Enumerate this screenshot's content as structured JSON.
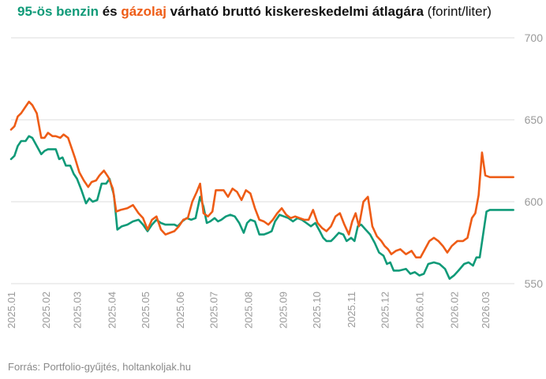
{
  "colors": {
    "benzin": "#0f9a78",
    "gazolaj": "#ee5c16",
    "grid": "#dcdcdc",
    "axis_text": "#9a9a9a"
  },
  "chart_data": {
    "type": "line",
    "title": {
      "part_benzin": "95-ös benzin",
      "part_es": " és ",
      "part_gazolaj": "gázolaj",
      "part_rest": " várható bruttó kiskereskedelmi átlagára",
      "unit": " (forint/liter)"
    },
    "xlabel": "",
    "ylabel": "",
    "ylim": [
      550,
      700
    ],
    "yticks": [
      550,
      600,
      650,
      700
    ],
    "y_axis_position": "right",
    "grid": true,
    "legend": "none",
    "x_range": [
      "2025-01-01",
      "2026-03-27"
    ],
    "x_ticks": [
      {
        "label": "2025.01",
        "date": "2025-01-01"
      },
      {
        "label": "2025.02",
        "date": "2025-02-01"
      },
      {
        "label": "2025.03",
        "date": "2025-03-01"
      },
      {
        "label": "2025.04",
        "date": "2025-04-01"
      },
      {
        "label": "2025.05",
        "date": "2025-05-01"
      },
      {
        "label": "2025.06",
        "date": "2025-06-01"
      },
      {
        "label": "2025.07",
        "date": "2025-07-01"
      },
      {
        "label": "2025.08",
        "date": "2025-08-01"
      },
      {
        "label": "2025.09",
        "date": "2025-09-01"
      },
      {
        "label": "2025.10",
        "date": "2025-10-01"
      },
      {
        "label": "2025.11",
        "date": "2025-11-01"
      },
      {
        "label": "2025.12",
        "date": "2025-12-01"
      },
      {
        "label": "2026.01",
        "date": "2026-01-01"
      },
      {
        "label": "2026.02",
        "date": "2026-02-01"
      },
      {
        "label": "2026.03",
        "date": "2026-03-01"
      }
    ],
    "series": [
      {
        "key": "benzin",
        "color": "#0f9a78",
        "points": [
          [
            "2025-01-01",
            626
          ],
          [
            "2025-01-04",
            628
          ],
          [
            "2025-01-07",
            634
          ],
          [
            "2025-01-10",
            637
          ],
          [
            "2025-01-14",
            637
          ],
          [
            "2025-01-17",
            640
          ],
          [
            "2025-01-20",
            639
          ],
          [
            "2025-01-24",
            634
          ],
          [
            "2025-01-28",
            629
          ],
          [
            "2025-01-31",
            631
          ],
          [
            "2025-02-03",
            632
          ],
          [
            "2025-02-07",
            632
          ],
          [
            "2025-02-10",
            632
          ],
          [
            "2025-02-13",
            626
          ],
          [
            "2025-02-16",
            627
          ],
          [
            "2025-02-19",
            622
          ],
          [
            "2025-02-23",
            622
          ],
          [
            "2025-02-26",
            617
          ],
          [
            "2025-03-01",
            614
          ],
          [
            "2025-03-05",
            607
          ],
          [
            "2025-03-09",
            599
          ],
          [
            "2025-03-12",
            602
          ],
          [
            "2025-03-15",
            600
          ],
          [
            "2025-03-19",
            601
          ],
          [
            "2025-03-23",
            611
          ],
          [
            "2025-03-27",
            611
          ],
          [
            "2025-03-30",
            614
          ],
          [
            "2025-04-03",
            604
          ],
          [
            "2025-04-06",
            583
          ],
          [
            "2025-04-10",
            585
          ],
          [
            "2025-04-15",
            586
          ],
          [
            "2025-04-20",
            588
          ],
          [
            "2025-04-25",
            589
          ],
          [
            "2025-04-29",
            586
          ],
          [
            "2025-05-03",
            582
          ],
          [
            "2025-05-07",
            586
          ],
          [
            "2025-05-11",
            589
          ],
          [
            "2025-05-15",
            587
          ],
          [
            "2025-05-19",
            586
          ],
          [
            "2025-05-23",
            586
          ],
          [
            "2025-05-27",
            586
          ],
          [
            "2025-05-30",
            585
          ],
          [
            "2025-06-03",
            588
          ],
          [
            "2025-06-07",
            590
          ],
          [
            "2025-06-11",
            589
          ],
          [
            "2025-06-15",
            590
          ],
          [
            "2025-06-19",
            603
          ],
          [
            "2025-06-22",
            597
          ],
          [
            "2025-06-25",
            587
          ],
          [
            "2025-06-28",
            588
          ],
          [
            "2025-07-02",
            590
          ],
          [
            "2025-07-05",
            588
          ],
          [
            "2025-07-08",
            589
          ],
          [
            "2025-07-12",
            591
          ],
          [
            "2025-07-16",
            592
          ],
          [
            "2025-07-20",
            591
          ],
          [
            "2025-07-24",
            587
          ],
          [
            "2025-07-28",
            581
          ],
          [
            "2025-07-31",
            587
          ],
          [
            "2025-08-03",
            589
          ],
          [
            "2025-08-07",
            588
          ],
          [
            "2025-08-11",
            580
          ],
          [
            "2025-08-15",
            580
          ],
          [
            "2025-08-19",
            581
          ],
          [
            "2025-08-22",
            582
          ],
          [
            "2025-08-25",
            588
          ],
          [
            "2025-08-29",
            592
          ],
          [
            "2025-09-02",
            591
          ],
          [
            "2025-09-06",
            590
          ],
          [
            "2025-09-10",
            588
          ],
          [
            "2025-09-14",
            590
          ],
          [
            "2025-09-18",
            589
          ],
          [
            "2025-09-22",
            587
          ],
          [
            "2025-09-26",
            585
          ],
          [
            "2025-09-30",
            587
          ],
          [
            "2025-10-04",
            582
          ],
          [
            "2025-10-07",
            578
          ],
          [
            "2025-10-10",
            576
          ],
          [
            "2025-10-14",
            576
          ],
          [
            "2025-10-17",
            578
          ],
          [
            "2025-10-21",
            581
          ],
          [
            "2025-10-25",
            580
          ],
          [
            "2025-10-28",
            576
          ],
          [
            "2025-11-01",
            578
          ],
          [
            "2025-11-04",
            576
          ],
          [
            "2025-11-07",
            585
          ],
          [
            "2025-11-10",
            586
          ],
          [
            "2025-11-14",
            583
          ],
          [
            "2025-11-18",
            580
          ],
          [
            "2025-11-22",
            575
          ],
          [
            "2025-11-26",
            569
          ],
          [
            "2025-11-30",
            567
          ],
          [
            "2025-12-03",
            562
          ],
          [
            "2025-12-06",
            563
          ],
          [
            "2025-12-09",
            558
          ],
          [
            "2025-12-14",
            558
          ],
          [
            "2025-12-20",
            559
          ],
          [
            "2025-12-24",
            556
          ],
          [
            "2025-12-28",
            557
          ],
          [
            "2026-01-01",
            555
          ],
          [
            "2026-01-05",
            556
          ],
          [
            "2026-01-09",
            562
          ],
          [
            "2026-01-14",
            563
          ],
          [
            "2026-01-19",
            562
          ],
          [
            "2026-01-24",
            559
          ],
          [
            "2026-01-28",
            553
          ],
          [
            "2026-02-01",
            555
          ],
          [
            "2026-02-05",
            558
          ],
          [
            "2026-02-10",
            562
          ],
          [
            "2026-02-14",
            563
          ],
          [
            "2026-02-18",
            561
          ],
          [
            "2026-02-21",
            566
          ],
          [
            "2026-02-24",
            566
          ],
          [
            "2026-02-27",
            580
          ],
          [
            "2026-03-02",
            594
          ],
          [
            "2026-03-05",
            595
          ],
          [
            "2026-03-10",
            595
          ],
          [
            "2026-03-15",
            595
          ],
          [
            "2026-03-20",
            595
          ],
          [
            "2026-03-26",
            595
          ]
        ]
      },
      {
        "key": "gazolaj",
        "color": "#ee5c16",
        "points": [
          [
            "2025-01-01",
            644
          ],
          [
            "2025-01-04",
            646
          ],
          [
            "2025-01-07",
            652
          ],
          [
            "2025-01-10",
            654
          ],
          [
            "2025-01-14",
            658
          ],
          [
            "2025-01-17",
            661
          ],
          [
            "2025-01-20",
            659
          ],
          [
            "2025-01-24",
            654
          ],
          [
            "2025-01-28",
            639
          ],
          [
            "2025-01-31",
            639
          ],
          [
            "2025-02-03",
            642
          ],
          [
            "2025-02-07",
            640
          ],
          [
            "2025-02-10",
            640
          ],
          [
            "2025-02-14",
            639
          ],
          [
            "2025-02-17",
            641
          ],
          [
            "2025-02-21",
            639
          ],
          [
            "2025-02-24",
            633
          ],
          [
            "2025-02-27",
            627
          ],
          [
            "2025-03-03",
            618
          ],
          [
            "2025-03-07",
            613
          ],
          [
            "2025-03-11",
            609
          ],
          [
            "2025-03-14",
            612
          ],
          [
            "2025-03-18",
            613
          ],
          [
            "2025-03-21",
            616
          ],
          [
            "2025-03-25",
            619
          ],
          [
            "2025-03-29",
            615
          ],
          [
            "2025-04-02",
            608
          ],
          [
            "2025-04-05",
            594
          ],
          [
            "2025-04-09",
            595
          ],
          [
            "2025-04-15",
            596
          ],
          [
            "2025-04-20",
            598
          ],
          [
            "2025-04-25",
            593
          ],
          [
            "2025-04-29",
            590
          ],
          [
            "2025-05-03",
            583
          ],
          [
            "2025-05-07",
            589
          ],
          [
            "2025-05-11",
            591
          ],
          [
            "2025-05-15",
            583
          ],
          [
            "2025-05-19",
            580
          ],
          [
            "2025-05-23",
            581
          ],
          [
            "2025-05-27",
            582
          ],
          [
            "2025-05-31",
            585
          ],
          [
            "2025-06-04",
            589
          ],
          [
            "2025-06-08",
            590
          ],
          [
            "2025-06-12",
            600
          ],
          [
            "2025-06-16",
            606
          ],
          [
            "2025-06-19",
            611
          ],
          [
            "2025-06-22",
            593
          ],
          [
            "2025-06-26",
            591
          ],
          [
            "2025-06-30",
            594
          ],
          [
            "2025-07-03",
            607
          ],
          [
            "2025-07-06",
            607
          ],
          [
            "2025-07-10",
            607
          ],
          [
            "2025-07-14",
            603
          ],
          [
            "2025-07-18",
            608
          ],
          [
            "2025-07-22",
            606
          ],
          [
            "2025-07-26",
            601
          ],
          [
            "2025-07-30",
            607
          ],
          [
            "2025-08-03",
            605
          ],
          [
            "2025-08-07",
            596
          ],
          [
            "2025-08-11",
            589
          ],
          [
            "2025-08-15",
            588
          ],
          [
            "2025-08-19",
            586
          ],
          [
            "2025-08-23",
            589
          ],
          [
            "2025-08-27",
            593
          ],
          [
            "2025-08-31",
            596
          ],
          [
            "2025-09-04",
            592
          ],
          [
            "2025-09-08",
            590
          ],
          [
            "2025-09-12",
            591
          ],
          [
            "2025-09-16",
            590
          ],
          [
            "2025-09-20",
            589
          ],
          [
            "2025-09-24",
            589
          ],
          [
            "2025-09-28",
            595
          ],
          [
            "2025-10-02",
            587
          ],
          [
            "2025-10-06",
            584
          ],
          [
            "2025-10-10",
            582
          ],
          [
            "2025-10-14",
            585
          ],
          [
            "2025-10-18",
            591
          ],
          [
            "2025-10-22",
            593
          ],
          [
            "2025-10-26",
            586
          ],
          [
            "2025-10-30",
            580
          ],
          [
            "2025-11-02",
            588
          ],
          [
            "2025-11-05",
            593
          ],
          [
            "2025-11-08",
            585
          ],
          [
            "2025-11-12",
            600
          ],
          [
            "2025-11-16",
            603
          ],
          [
            "2025-11-20",
            585
          ],
          [
            "2025-11-24",
            579
          ],
          [
            "2025-11-28",
            576
          ],
          [
            "2025-12-01",
            573
          ],
          [
            "2025-12-04",
            571
          ],
          [
            "2025-12-07",
            568
          ],
          [
            "2025-12-11",
            570
          ],
          [
            "2025-12-15",
            571
          ],
          [
            "2025-12-20",
            568
          ],
          [
            "2025-12-25",
            570
          ],
          [
            "2025-12-29",
            566
          ],
          [
            "2026-01-02",
            566
          ],
          [
            "2026-01-06",
            571
          ],
          [
            "2026-01-10",
            576
          ],
          [
            "2026-01-14",
            578
          ],
          [
            "2026-01-18",
            576
          ],
          [
            "2026-01-22",
            573
          ],
          [
            "2026-01-26",
            569
          ],
          [
            "2026-01-30",
            573
          ],
          [
            "2026-02-04",
            576
          ],
          [
            "2026-02-09",
            576
          ],
          [
            "2026-02-13",
            578
          ],
          [
            "2026-02-17",
            590
          ],
          [
            "2026-02-20",
            593
          ],
          [
            "2026-02-23",
            604
          ],
          [
            "2026-02-26",
            630
          ],
          [
            "2026-03-01",
            616
          ],
          [
            "2026-03-05",
            615
          ],
          [
            "2026-03-10",
            615
          ],
          [
            "2026-03-15",
            615
          ],
          [
            "2026-03-20",
            615
          ],
          [
            "2026-03-26",
            615
          ]
        ]
      }
    ]
  },
  "source": "Forrás: Portfolio-gyűjtés, holtankoljak.hu"
}
